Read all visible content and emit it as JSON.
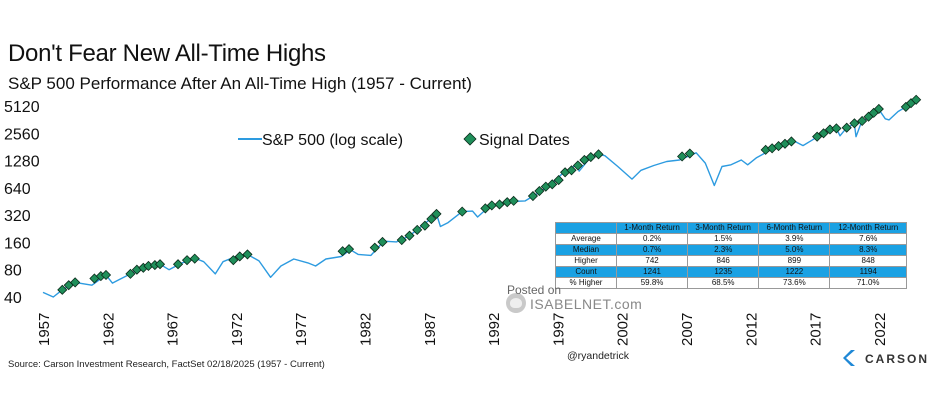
{
  "title": "Don't Fear New All-Time Highs",
  "subtitle": "S&P 500 Performance After An All-Time High (1957 - Current)",
  "source": "Source: Carson Investment Research, FactSet 02/18/2025 (1957 - Current)",
  "handle": "@ryandetrick",
  "watermark": {
    "line1": "Posted on",
    "line2": "ISABELNET.com"
  },
  "logo_text": "CARSON",
  "colors": {
    "line": "#2d9be0",
    "marker": "#1f8f5a",
    "marker_edge": "#0a2a1a",
    "table_highlight": "#1aa1e3",
    "logo": "#1f88d6"
  },
  "chart_data": {
    "type": "line",
    "scale_y": "log",
    "ylim": [
      40,
      5120
    ],
    "xlim": [
      1957,
      2025.2
    ],
    "y_ticks": [
      40,
      80,
      160,
      320,
      640,
      1280,
      2560,
      5120
    ],
    "x_ticks": [
      1957,
      1962,
      1967,
      1972,
      1977,
      1982,
      1987,
      1992,
      1997,
      2002,
      2007,
      2012,
      2017,
      2022
    ],
    "grid": false,
    "legend_position": "top-center",
    "series": [
      {
        "name": "S&P 500 (log scale)",
        "x": [
          1957,
          1957.8,
          1958.5,
          1959.5,
          1960.8,
          1961.9,
          1962.4,
          1962.9,
          1963.8,
          1965,
          1966.1,
          1966.8,
          1967.8,
          1968.9,
          1969.5,
          1970.4,
          1971,
          1972,
          1972.9,
          1973.8,
          1974.7,
          1975.5,
          1976.5,
          1977.6,
          1978.2,
          1979,
          1980.2,
          1980.9,
          1981.5,
          1982.5,
          1983.5,
          1984.5,
          1985.5,
          1986.5,
          1987.6,
          1987.9,
          1988.5,
          1989.6,
          1990.4,
          1990.8,
          1991.5,
          1993,
          1994.5,
          1995.5,
          1996.5,
          1997.5,
          1998.5,
          1998.7,
          1999.5,
          2000.2,
          2000.7,
          2001.7,
          2002.8,
          2003.5,
          2004.5,
          2005.5,
          2006.5,
          2007.8,
          2008.5,
          2009.2,
          2009.8,
          2010.5,
          2011.3,
          2011.8,
          2012.5,
          2013.5,
          2014.5,
          2015.5,
          2016.1,
          2016.8,
          2017.8,
          2018.7,
          2018.98,
          2019.5,
          2020.1,
          2020.22,
          2020.6,
          2021.2,
          2021.97,
          2022.5,
          2022.8,
          2023.5,
          2024.2,
          2024.7,
          2025.1
        ],
        "values": [
          45,
          40,
          48,
          58,
          54,
          70,
          57,
          62,
          72,
          88,
          92,
          80,
          95,
          106,
          98,
          72,
          98,
          112,
          118,
          100,
          66,
          88,
          105,
          95,
          88,
          105,
          112,
          133,
          118,
          115,
          165,
          162,
          190,
          245,
          330,
          240,
          265,
          350,
          355,
          305,
          375,
          450,
          460,
          560,
          700,
          950,
          1150,
          980,
          1350,
          1500,
          1450,
          1100,
          800,
          1000,
          1130,
          1250,
          1300,
          1560,
          1200,
          680,
          1100,
          1150,
          1300,
          1150,
          1380,
          1650,
          1950,
          2070,
          1870,
          2150,
          2640,
          2900,
          2400,
          2950,
          3250,
          2350,
          3250,
          3900,
          4750,
          3700,
          3600,
          4450,
          5100,
          5600,
          6100
        ]
      },
      {
        "name": "Signal Dates",
        "marker": "diamond",
        "x": [
          1958.5,
          1959,
          1959.5,
          1961,
          1961.5,
          1961.9,
          1963.8,
          1964.3,
          1964.8,
          1965.2,
          1965.7,
          1966.1,
          1967.5,
          1968.2,
          1968.8,
          1971.8,
          1972.3,
          1972.9,
          1980.3,
          1980.8,
          1982.8,
          1983.4,
          1984.9,
          1985.5,
          1986.1,
          1986.7,
          1987.2,
          1987.6,
          1989.6,
          1991.4,
          1991.9,
          1992.5,
          1993.1,
          1993.6,
          1995.1,
          1995.6,
          1996.1,
          1996.6,
          1997.1,
          1997.6,
          1998.1,
          1998.6,
          1999.1,
          1999.6,
          2000.2,
          2006.7,
          2007.3,
          2013.2,
          2013.7,
          2014.2,
          2014.7,
          2015.2,
          2017.2,
          2017.7,
          2018.2,
          2018.7,
          2019.5,
          2020.1,
          2020.7,
          2021.2,
          2021.6,
          2022,
          2024.1,
          2024.5,
          2024.9
        ],
        "values": [
          48,
          54,
          58,
          64,
          68,
          70,
          72,
          80,
          84,
          88,
          90,
          92,
          92,
          102,
          106,
          102,
          112,
          118,
          128,
          135,
          140,
          162,
          170,
          190,
          220,
          245,
          290,
          330,
          350,
          380,
          410,
          420,
          445,
          460,
          520,
          590,
          660,
          700,
          780,
          950,
          1000,
          1130,
          1300,
          1400,
          1500,
          1420,
          1530,
          1680,
          1750,
          1850,
          1960,
          2080,
          2350,
          2560,
          2820,
          2900,
          2950,
          3300,
          3500,
          3900,
          4300,
          4750,
          5000,
          5500,
          6000
        ]
      }
    ],
    "table": {
      "columns": [
        "",
        "1-Month Return",
        "3-Month Return",
        "6-Month Return",
        "12-Month Return"
      ],
      "rows": [
        [
          "Average",
          "0.2%",
          "1.5%",
          "3.9%",
          "7.6%"
        ],
        [
          "Median",
          "0.7%",
          "2.3%",
          "5.0%",
          "8.3%"
        ],
        [
          "Higher",
          "742",
          "846",
          "899",
          "848"
        ],
        [
          "Count",
          "1241",
          "1235",
          "1222",
          "1194"
        ],
        [
          "% Higher",
          "59.8%",
          "68.5%",
          "73.6%",
          "71.0%"
        ]
      ],
      "highlighted_rows": [
        1,
        3
      ]
    }
  }
}
